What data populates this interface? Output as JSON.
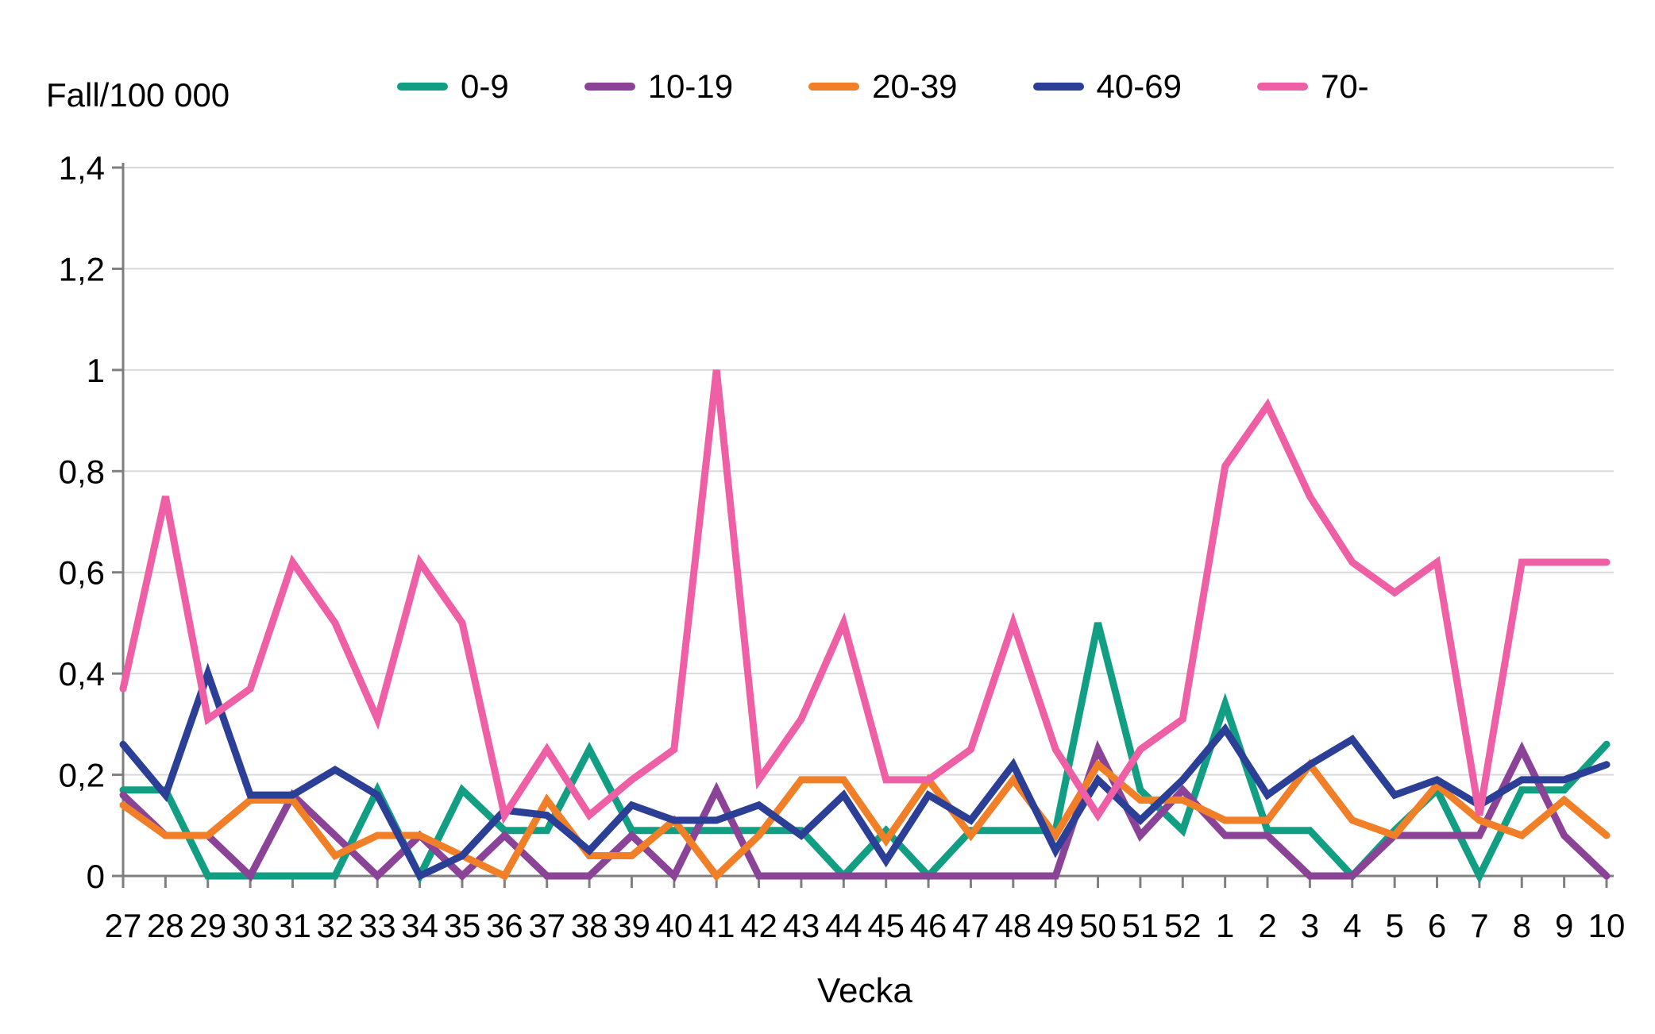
{
  "chart_data": {
    "type": "line",
    "title": "Fall/100 000",
    "xlabel": "Vecka",
    "ylim": [
      0,
      1.4
    ],
    "grid": "horizontal-only",
    "legend_position": "top-center",
    "gridline_color": "#D9D9D9",
    "axis_color": "#7F7F7F",
    "yticks": [
      {
        "value": 0,
        "label": "0"
      },
      {
        "value": 0.2,
        "label": "0,2"
      },
      {
        "value": 0.4,
        "label": "0,4"
      },
      {
        "value": 0.6,
        "label": "0,6"
      },
      {
        "value": 0.8,
        "label": "0,8"
      },
      {
        "value": 1.0,
        "label": "1"
      },
      {
        "value": 1.2,
        "label": "1,2"
      },
      {
        "value": 1.4,
        "label": "1,4"
      }
    ],
    "categories": [
      "27",
      "28",
      "29",
      "30",
      "31",
      "32",
      "33",
      "34",
      "35",
      "36",
      "37",
      "38",
      "39",
      "40",
      "41",
      "42",
      "43",
      "44",
      "45",
      "46",
      "47",
      "48",
      "49",
      "50",
      "51",
      "52",
      "1",
      "2",
      "3",
      "4",
      "5",
      "6",
      "7",
      "8",
      "9",
      "10"
    ],
    "series": [
      {
        "name": "0-9",
        "color": "#129E82",
        "values": [
          0.17,
          0.17,
          0,
          0,
          0,
          0,
          0.17,
          0,
          0.17,
          0.09,
          0.09,
          0.25,
          0.09,
          0.09,
          0.09,
          0.09,
          0.09,
          0,
          0.09,
          0,
          0.09,
          0.09,
          0.09,
          0.5,
          0.17,
          0.09,
          0.34,
          0.09,
          0.09,
          0,
          0.09,
          0.17,
          0,
          0.17,
          0.17,
          0.26
        ]
      },
      {
        "name": "10-19",
        "color": "#8A4397",
        "values": [
          0.16,
          0.08,
          0.08,
          0,
          0.16,
          0.08,
          0,
          0.08,
          0,
          0.08,
          0,
          0,
          0.08,
          0,
          0.17,
          0,
          0,
          0,
          0,
          0,
          0,
          0,
          0,
          0.25,
          0.08,
          0.17,
          0.08,
          0.08,
          0,
          0,
          0.08,
          0.08,
          0.08,
          0.25,
          0.08,
          0
        ]
      },
      {
        "name": "20-39",
        "color": "#F07F28",
        "values": [
          0.14,
          0.08,
          0.08,
          0.15,
          0.15,
          0.04,
          0.08,
          0.08,
          0.04,
          0,
          0.15,
          0.04,
          0.04,
          0.11,
          0,
          0.08,
          0.19,
          0.19,
          0.07,
          0.19,
          0.08,
          0.19,
          0.08,
          0.22,
          0.15,
          0.15,
          0.11,
          0.11,
          0.22,
          0.11,
          0.08,
          0.18,
          0.11,
          0.08,
          0.15,
          0.08
        ]
      },
      {
        "name": "40-69",
        "color": "#2B3F96",
        "values": [
          0.26,
          0.16,
          0.4,
          0.16,
          0.16,
          0.21,
          0.16,
          0,
          0.04,
          0.13,
          0.12,
          0.05,
          0.14,
          0.11,
          0.11,
          0.14,
          0.08,
          0.16,
          0.03,
          0.16,
          0.11,
          0.22,
          0.05,
          0.19,
          0.11,
          0.19,
          0.29,
          0.16,
          0.22,
          0.27,
          0.16,
          0.19,
          0.14,
          0.19,
          0.19,
          0.22
        ]
      },
      {
        "name": "70-",
        "color": "#EF5FA5",
        "values": [
          0.37,
          0.75,
          0.31,
          0.37,
          0.62,
          0.5,
          0.31,
          0.62,
          0.5,
          0.12,
          0.25,
          0.12,
          0.19,
          0.25,
          1.0,
          0.19,
          0.31,
          0.5,
          0.19,
          0.19,
          0.25,
          0.5,
          0.25,
          0.12,
          0.25,
          0.31,
          0.81,
          0.93,
          0.75,
          0.62,
          0.56,
          0.62,
          0.12,
          0.62,
          0.62,
          0.62
        ]
      }
    ]
  }
}
